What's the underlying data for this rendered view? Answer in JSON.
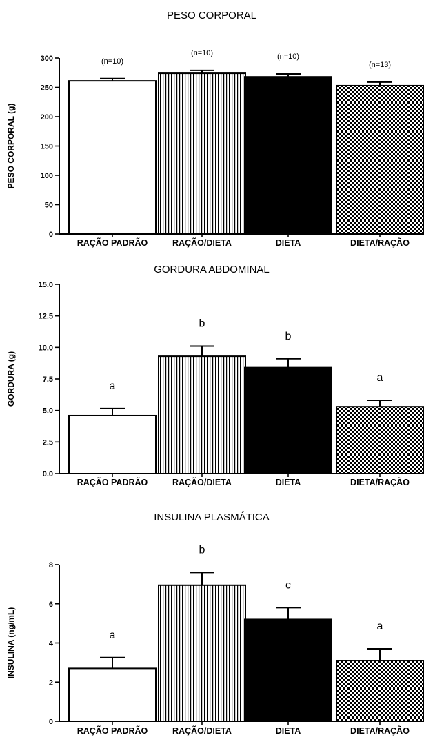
{
  "chart_data": [
    {
      "type": "bar",
      "title": "PESO CORPORAL",
      "ylabel": "PESO CORPORAL (g)",
      "xlabel": "",
      "categories": [
        "RAÇÃO PADRÃO",
        "RAÇÃO/DIETA",
        "DIETA",
        "DIETA/RAÇÃO"
      ],
      "values": [
        261,
        274,
        268,
        253
      ],
      "errors": [
        4,
        5,
        5,
        6
      ],
      "annotations": [
        "(n=10)",
        "(n=10)",
        "(n=10)",
        "(n=13)"
      ],
      "ylim": [
        0,
        300
      ],
      "yticks": [
        0,
        50,
        100,
        150,
        200,
        250,
        300
      ],
      "ytick_labels": [
        "0",
        "50",
        "100",
        "150",
        "200",
        "250",
        "300"
      ],
      "fills": [
        "white",
        "vertical-stripes",
        "black",
        "checkerboard"
      ],
      "grid": false
    },
    {
      "type": "bar",
      "title": "GORDURA ABDOMINAL",
      "ylabel": "GORDURA (g)",
      "xlabel": "",
      "categories": [
        "RAÇÃO PADRÃO",
        "RAÇÃO/DIETA",
        "DIETA",
        "DIETA/RAÇÃO"
      ],
      "values": [
        4.6,
        9.3,
        8.45,
        5.3
      ],
      "errors": [
        0.55,
        0.8,
        0.65,
        0.5
      ],
      "annotations": [
        "a",
        "b",
        "b",
        "a"
      ],
      "ylim": [
        0,
        15
      ],
      "yticks": [
        0,
        2.5,
        5,
        7.5,
        10,
        12.5,
        15
      ],
      "ytick_labels": [
        "0.0",
        "2.5",
        "5.0",
        "7.5",
        "10.0",
        "12.5",
        "15.0"
      ],
      "fills": [
        "white",
        "vertical-stripes",
        "black",
        "checkerboard"
      ],
      "grid": false
    },
    {
      "type": "bar",
      "title": "INSULINA PLASMÁTICA",
      "ylabel": "INSULINA (ng/mL)",
      "xlabel": "",
      "categories": [
        "RAÇÃO PADRÃO",
        "RAÇÃO/DIETA",
        "DIETA",
        "DIETA/RAÇÃO"
      ],
      "values": [
        2.7,
        6.95,
        5.2,
        3.1
      ],
      "errors": [
        0.55,
        0.65,
        0.6,
        0.6
      ],
      "annotations": [
        "a",
        "b",
        "c",
        "a"
      ],
      "ylim": [
        0,
        8
      ],
      "yticks": [
        0,
        2,
        4,
        6,
        8
      ],
      "ytick_labels": [
        "0",
        "2",
        "4",
        "6",
        "8"
      ],
      "fills": [
        "white",
        "vertical-stripes",
        "black",
        "checkerboard"
      ],
      "grid": false
    }
  ]
}
